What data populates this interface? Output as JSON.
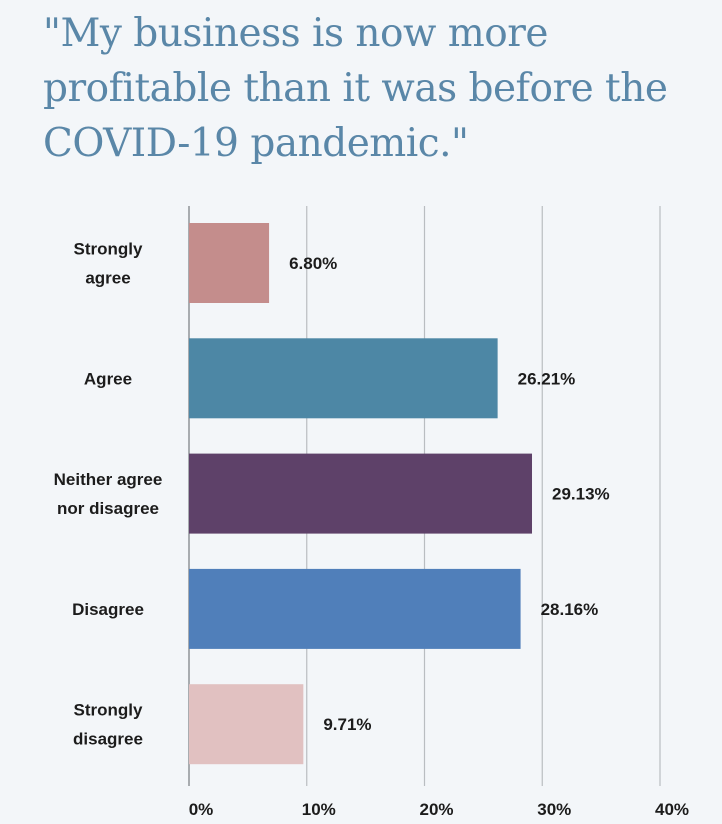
{
  "chart_data": {
    "type": "bar",
    "orientation": "horizontal",
    "title": "\"My business is now more profitable than it was before the COVID-19 pandemic.\"",
    "categories": [
      [
        "Strongly",
        "agree"
      ],
      [
        "Agree"
      ],
      [
        "Neither agree",
        "nor disagree"
      ],
      [
        "Disagree"
      ],
      [
        "Strongly",
        "disagree"
      ]
    ],
    "values": [
      6.8,
      26.21,
      29.13,
      28.16,
      9.71
    ],
    "value_labels": [
      "6.80%",
      "26.21%",
      "29.13%",
      "28.16%",
      "9.71%"
    ],
    "colors": [
      "#c48d8c",
      "#4d87a5",
      "#5e4169",
      "#507fba",
      "#e1c1c1"
    ],
    "xlim": [
      0,
      40
    ],
    "xticks": [
      0,
      10,
      20,
      30,
      40
    ],
    "xtick_labels": [
      "0%",
      "10%",
      "20%",
      "30%",
      "40%"
    ],
    "grid": true,
    "legend": "none"
  }
}
